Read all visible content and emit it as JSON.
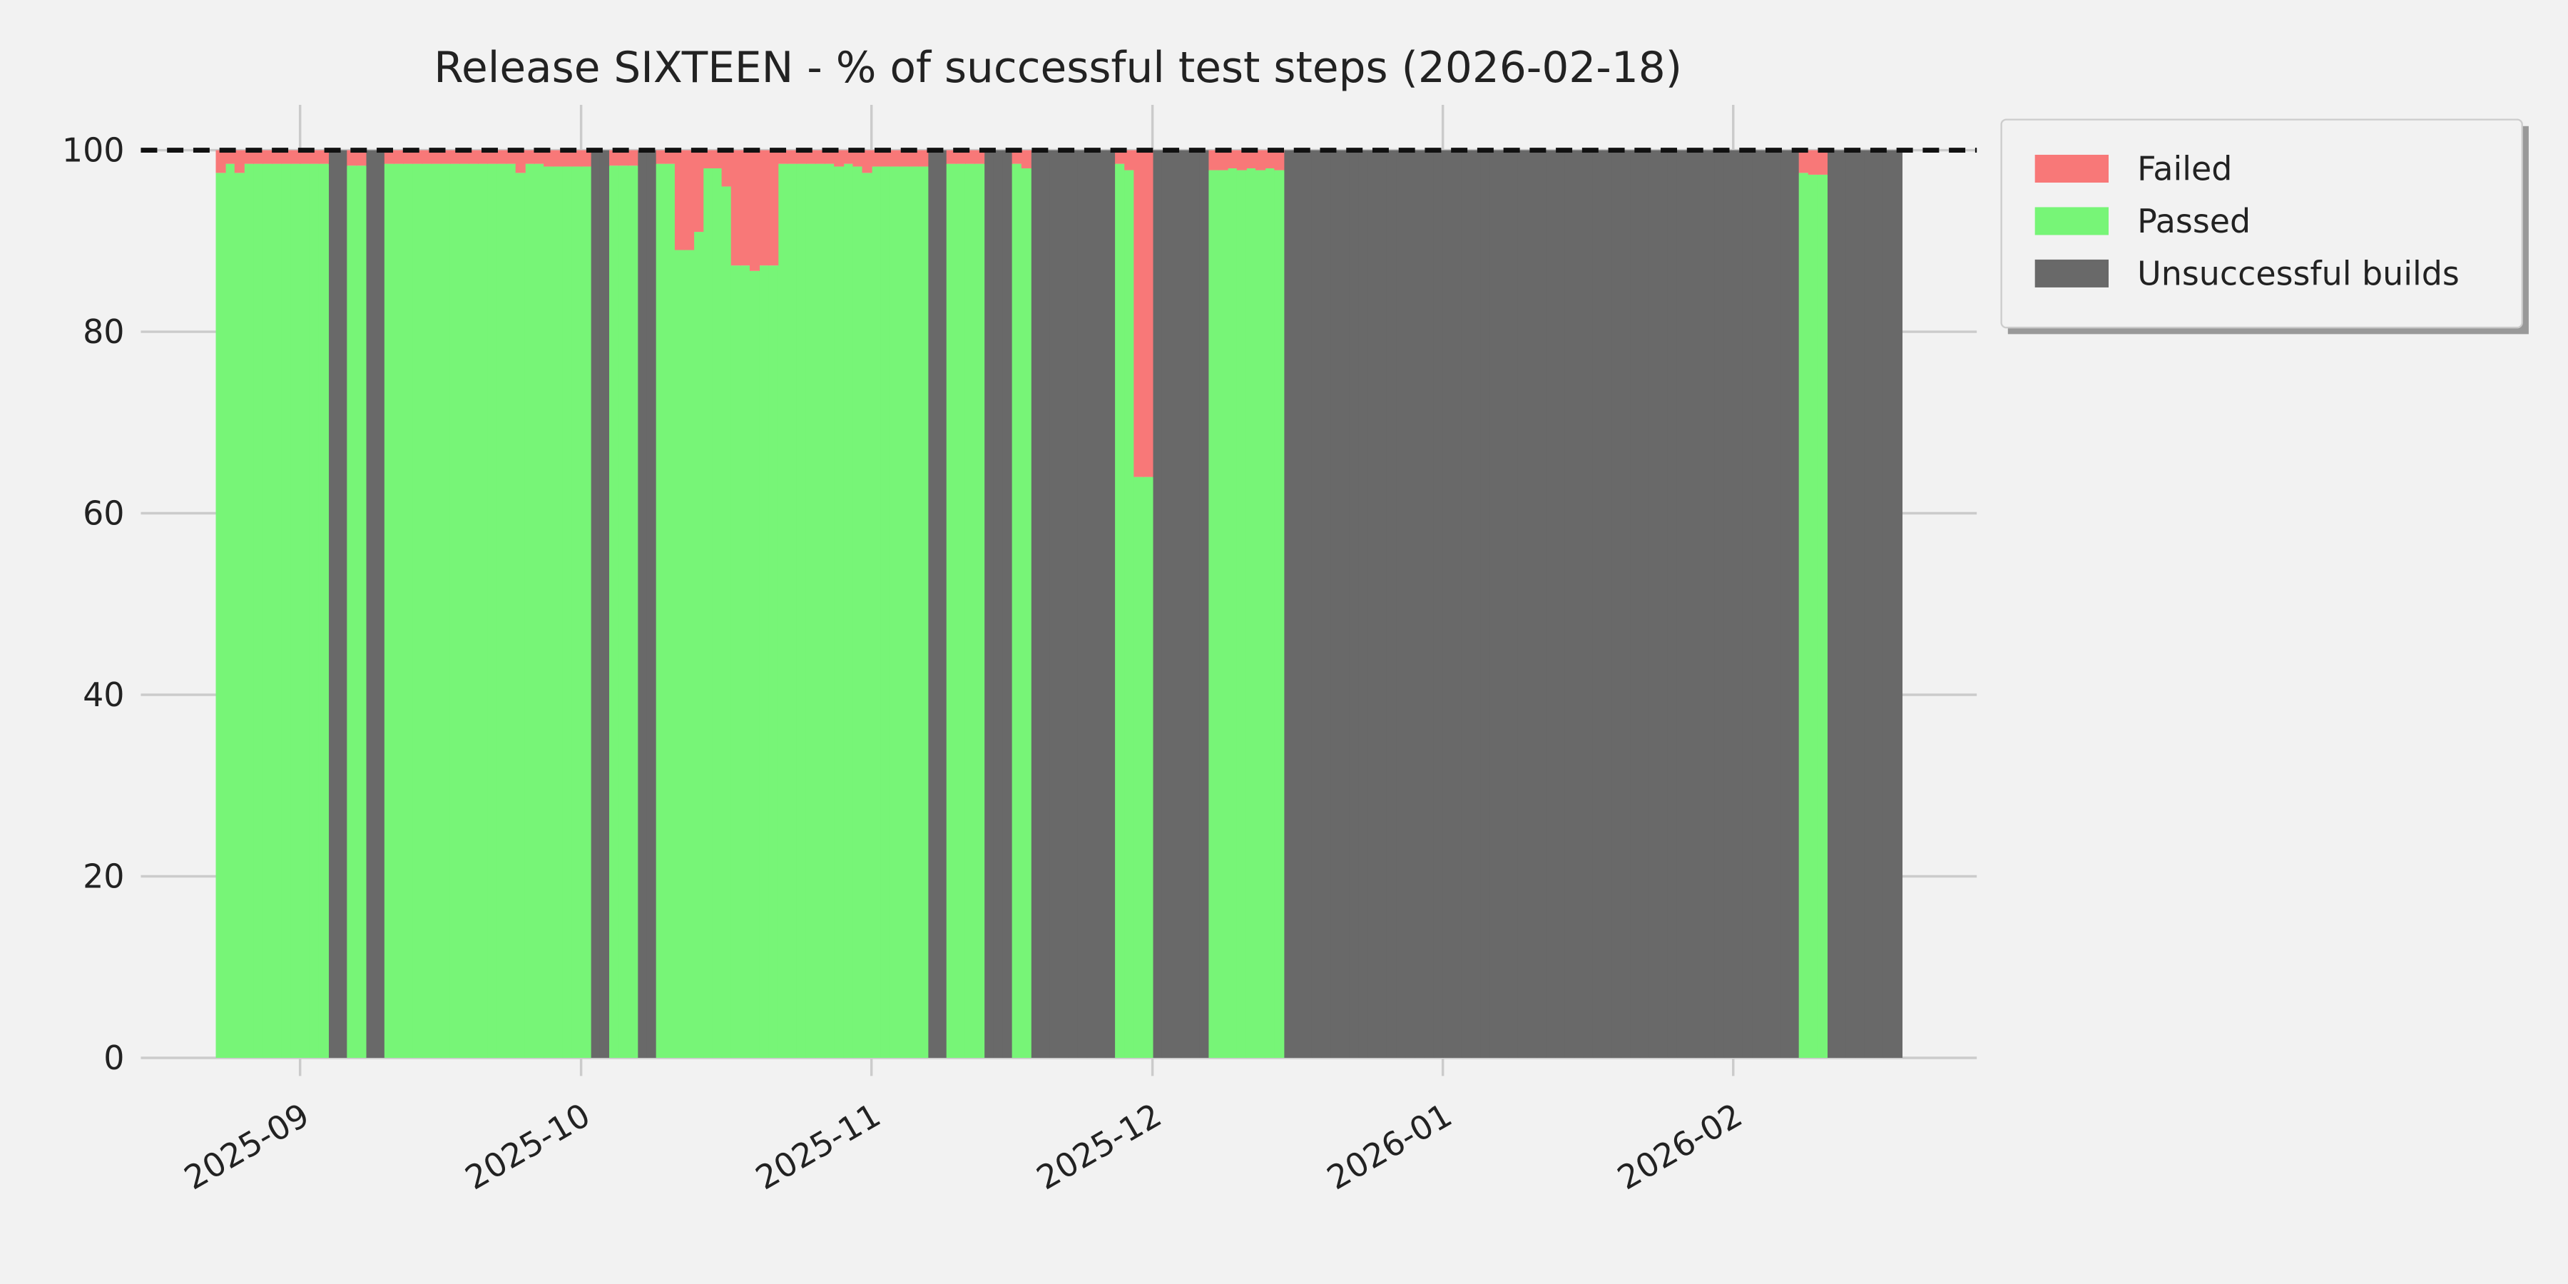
{
  "chart_data": {
    "type": "stacked_area",
    "title": "Release SIXTEEN - % of successful test steps (2026-02-18)",
    "x": [
      "2025-08-23",
      "2025-08-24",
      "2025-08-25",
      "2025-08-26",
      "2025-08-27",
      "2025-08-28",
      "2025-08-29",
      "2025-08-30",
      "2025-08-31",
      "2025-09-01",
      "2025-09-02",
      "2025-09-03",
      "2025-09-04",
      "2025-09-05",
      "2025-09-06",
      "2025-09-07",
      "2025-09-08",
      "2025-09-09",
      "2025-09-10",
      "2025-09-11",
      "2025-09-12",
      "2025-09-13",
      "2025-09-14",
      "2025-09-15",
      "2025-09-16",
      "2025-09-17",
      "2025-09-18",
      "2025-09-19",
      "2025-09-20",
      "2025-09-21",
      "2025-09-22",
      "2025-09-23",
      "2025-09-24",
      "2025-09-25",
      "2025-09-26",
      "2025-09-27",
      "2025-09-28",
      "2025-09-29",
      "2025-09-30",
      "2025-10-01",
      "2025-10-02",
      "2025-10-03",
      "2025-10-04",
      "2025-10-05",
      "2025-10-06",
      "2025-10-07",
      "2025-10-08",
      "2025-10-09",
      "2025-10-10",
      "2025-10-11",
      "2025-10-12",
      "2025-10-13",
      "2025-10-14",
      "2025-10-15",
      "2025-10-16",
      "2025-10-17",
      "2025-10-18",
      "2025-10-19",
      "2025-10-20",
      "2025-10-21",
      "2025-10-22",
      "2025-10-23",
      "2025-10-24",
      "2025-10-25",
      "2025-10-26",
      "2025-10-27",
      "2025-10-28",
      "2025-10-29",
      "2025-10-30",
      "2025-10-31",
      "2025-11-01",
      "2025-11-02",
      "2025-11-03",
      "2025-11-04",
      "2025-11-05",
      "2025-11-06",
      "2025-11-07",
      "2025-11-08",
      "2025-11-09",
      "2025-11-10",
      "2025-11-11",
      "2025-11-12",
      "2025-11-13",
      "2025-11-14",
      "2025-11-15",
      "2025-11-16",
      "2025-11-17",
      "2025-11-18",
      "2025-11-19",
      "2025-11-20",
      "2025-11-21",
      "2025-11-22",
      "2025-11-23",
      "2025-11-24",
      "2025-11-25",
      "2025-11-26",
      "2025-11-27",
      "2025-11-28",
      "2025-11-29",
      "2025-11-30",
      "2025-12-01",
      "2025-12-02",
      "2025-12-03",
      "2025-12-04",
      "2025-12-05",
      "2025-12-06",
      "2025-12-07",
      "2025-12-08",
      "2025-12-09",
      "2025-12-10",
      "2025-12-11",
      "2025-12-12",
      "2025-12-13",
      "2025-12-14",
      "2025-12-15",
      "2025-12-16",
      "2025-12-17",
      "2025-12-18",
      "2025-12-19",
      "2025-12-20",
      "2025-12-21",
      "2025-12-22",
      "2025-12-23",
      "2025-12-24",
      "2025-12-25",
      "2025-12-26",
      "2025-12-27",
      "2025-12-28",
      "2025-12-29",
      "2025-12-30",
      "2025-12-31",
      "2026-01-01",
      "2026-01-02",
      "2026-01-03",
      "2026-01-04",
      "2026-01-05",
      "2026-01-06",
      "2026-01-07",
      "2026-01-08",
      "2026-01-09",
      "2026-01-10",
      "2026-01-11",
      "2026-01-12",
      "2026-01-13",
      "2026-01-14",
      "2026-01-15",
      "2026-01-16",
      "2026-01-17",
      "2026-01-18",
      "2026-01-19",
      "2026-01-20",
      "2026-01-21",
      "2026-01-22",
      "2026-01-23",
      "2026-01-24",
      "2026-01-25",
      "2026-01-26",
      "2026-01-27",
      "2026-01-28",
      "2026-01-29",
      "2026-01-30",
      "2026-01-31",
      "2026-02-01",
      "2026-02-02",
      "2026-02-03",
      "2026-02-04",
      "2026-02-05",
      "2026-02-06",
      "2026-02-07",
      "2026-02-08",
      "2026-02-09",
      "2026-02-10",
      "2026-02-11",
      "2026-02-12",
      "2026-02-13",
      "2026-02-14",
      "2026-02-15",
      "2026-02-16",
      "2026-02-17",
      "2026-02-18"
    ],
    "series": [
      {
        "name": "Failed",
        "color": "#f87878",
        "values": [
          2.5,
          1.5,
          2.5,
          1.5,
          1.5,
          1.5,
          1.5,
          1.5,
          1.5,
          1.5,
          1.5,
          1.5,
          0,
          0,
          1.7,
          1.7,
          0,
          0,
          1.5,
          1.5,
          1.5,
          1.5,
          1.5,
          1.5,
          1.5,
          1.5,
          1.5,
          1.5,
          1.5,
          1.5,
          1.5,
          1.5,
          2.5,
          1.5,
          1.5,
          1.8,
          1.8,
          1.8,
          1.8,
          1.8,
          0,
          0,
          1.7,
          1.7,
          1.7,
          0,
          0,
          1.5,
          1.5,
          11,
          11,
          9,
          2,
          2,
          4,
          12.7,
          12.7,
          13.3,
          12.7,
          12.7,
          1.5,
          1.5,
          1.5,
          1.5,
          1.5,
          1.5,
          1.8,
          1.5,
          1.8,
          2.5,
          1.8,
          1.8,
          1.8,
          1.8,
          1.8,
          1.8,
          0,
          0,
          1.5,
          1.5,
          1.5,
          1.5,
          0,
          0,
          0,
          1.5,
          2,
          0,
          0,
          0,
          0,
          0,
          0,
          0,
          0,
          0,
          1.5,
          2.2,
          36,
          36,
          0,
          0,
          0,
          0,
          0,
          0,
          2.2,
          2.2,
          2,
          2.2,
          2,
          2.2,
          2,
          2.2,
          0,
          0,
          0,
          0,
          0,
          0,
          0,
          0,
          0,
          0,
          0,
          0,
          0,
          0,
          0,
          0,
          0,
          0,
          0,
          0,
          0,
          0,
          0,
          0,
          0,
          0,
          0,
          0,
          0,
          0,
          0,
          0,
          0,
          0,
          0,
          0,
          0,
          0,
          0,
          0,
          0,
          0,
          0,
          0,
          0,
          0,
          0,
          0,
          0,
          0,
          0,
          0,
          0,
          0,
          0,
          2.5,
          2.7,
          2.7,
          0,
          0,
          0,
          0,
          0,
          0,
          0,
          0
        ]
      },
      {
        "name": "Passed",
        "color": "#77f577",
        "values": [
          97.5,
          98.5,
          97.5,
          98.5,
          98.5,
          98.5,
          98.5,
          98.5,
          98.5,
          98.5,
          98.5,
          98.5,
          0,
          0,
          98.3,
          98.3,
          0,
          0,
          98.5,
          98.5,
          98.5,
          98.5,
          98.5,
          98.5,
          98.5,
          98.5,
          98.5,
          98.5,
          98.5,
          98.5,
          98.5,
          98.5,
          97.5,
          98.5,
          98.5,
          98.2,
          98.2,
          98.2,
          98.2,
          98.2,
          0,
          0,
          98.3,
          98.3,
          98.3,
          0,
          0,
          98.5,
          98.5,
          89,
          89,
          91,
          98,
          98,
          96,
          87.3,
          87.3,
          86.7,
          87.3,
          87.3,
          98.5,
          98.5,
          98.5,
          98.5,
          98.5,
          98.5,
          98.2,
          98.5,
          98.2,
          97.5,
          98.2,
          98.2,
          98.2,
          98.2,
          98.2,
          98.2,
          0,
          0,
          98.5,
          98.5,
          98.5,
          98.5,
          0,
          0,
          0,
          98.5,
          98,
          0,
          0,
          0,
          0,
          0,
          0,
          0,
          0,
          0,
          98.5,
          97.8,
          64,
          64,
          0,
          0,
          0,
          0,
          0,
          0,
          97.8,
          97.8,
          98,
          97.8,
          98,
          97.8,
          98,
          97.8,
          0,
          0,
          0,
          0,
          0,
          0,
          0,
          0,
          0,
          0,
          0,
          0,
          0,
          0,
          0,
          0,
          0,
          0,
          0,
          0,
          0,
          0,
          0,
          0,
          0,
          0,
          0,
          0,
          0,
          0,
          0,
          0,
          0,
          0,
          0,
          0,
          0,
          0,
          0,
          0,
          0,
          0,
          0,
          0,
          0,
          0,
          0,
          0,
          0,
          0,
          0,
          0,
          0,
          0,
          0,
          97.5,
          97.3,
          97.3,
          0,
          0,
          0,
          0,
          0,
          0,
          0,
          0
        ]
      },
      {
        "name": "Unsuccessful builds",
        "color": "#696969",
        "values": [
          0,
          0,
          0,
          0,
          0,
          0,
          0,
          0,
          0,
          0,
          0,
          0,
          100,
          100,
          0,
          0,
          100,
          100,
          0,
          0,
          0,
          0,
          0,
          0,
          0,
          0,
          0,
          0,
          0,
          0,
          0,
          0,
          0,
          0,
          0,
          0,
          0,
          0,
          0,
          0,
          100,
          100,
          0,
          0,
          0,
          100,
          100,
          0,
          0,
          0,
          0,
          0,
          0,
          0,
          0,
          0,
          0,
          0,
          0,
          0,
          0,
          0,
          0,
          0,
          0,
          0,
          0,
          0,
          0,
          0,
          0,
          0,
          0,
          0,
          0,
          0,
          100,
          100,
          0,
          0,
          0,
          0,
          100,
          100,
          100,
          0,
          0,
          100,
          100,
          100,
          100,
          100,
          100,
          100,
          100,
          100,
          0,
          0,
          0,
          0,
          100,
          100,
          100,
          100,
          100,
          100,
          0,
          0,
          0,
          0,
          0,
          0,
          0,
          0,
          100,
          100,
          100,
          100,
          100,
          100,
          100,
          100,
          100,
          100,
          100,
          100,
          100,
          100,
          100,
          100,
          100,
          100,
          100,
          100,
          100,
          100,
          100,
          100,
          100,
          100,
          100,
          100,
          100,
          100,
          100,
          100,
          100,
          100,
          100,
          100,
          100,
          100,
          100,
          100,
          100,
          100,
          100,
          100,
          100,
          100,
          100,
          100,
          100,
          100,
          100,
          100,
          100,
          100,
          100,
          0,
          0,
          0,
          100,
          100,
          100,
          100,
          100,
          100,
          100,
          100
        ]
      }
    ],
    "xlim": [
      "2025-08-15",
      "2026-02-27"
    ],
    "xticks": [
      "2025-09",
      "2025-10",
      "2025-11",
      "2025-12",
      "2026-01",
      "2026-02"
    ],
    "ylim": [
      -2,
      105
    ],
    "yticks": [
      0,
      20,
      40,
      60,
      80,
      100
    ],
    "hline": 100,
    "grid": true,
    "legend": "outside upper right"
  }
}
